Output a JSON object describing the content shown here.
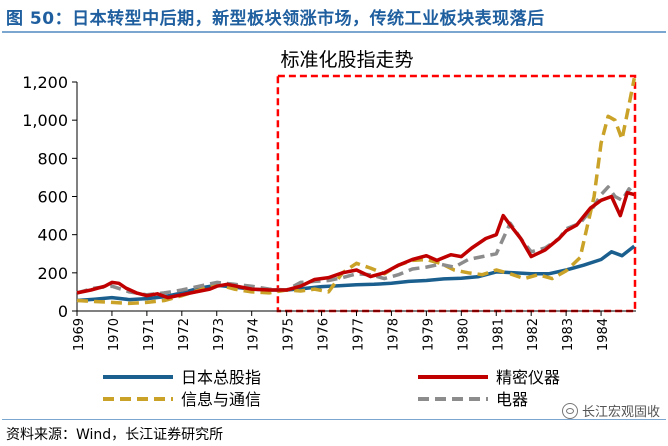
{
  "figure": {
    "title": "图 50：日本转型中后期，新型板块领涨市场，传统工业板块表现落后",
    "source": "资料来源：Wind，长江证券研究所",
    "watermark": "长江宏观固收"
  },
  "chart_data": {
    "type": "line",
    "title": "标准化股指走势",
    "xlabel": "",
    "ylabel": "",
    "ylim": [
      0,
      1200
    ],
    "yticks": [
      "0",
      "200",
      "400",
      "600",
      "800",
      "1,000",
      "1,200"
    ],
    "ytick_values": [
      0,
      200,
      400,
      600,
      800,
      1000,
      1200
    ],
    "xlim": [
      1969,
      1985
    ],
    "xticks": [
      "1969",
      "1970",
      "1971",
      "1972",
      "1973",
      "1974",
      "1975",
      "1976",
      "1977",
      "1978",
      "1979",
      "1980",
      "1981",
      "1982",
      "1983",
      "1984"
    ],
    "xtick_values": [
      1969,
      1970,
      1971,
      1972,
      1973,
      1974,
      1975,
      1976,
      1977,
      1978,
      1979,
      1980,
      1981,
      1982,
      1983,
      1984
    ],
    "highlight_range": [
      1974.75,
      1985
    ],
    "colors": {
      "nikkei": "#1b5f8f",
      "precision": "#c00000",
      "telecom": "#c9a227",
      "electric": "#8c8c8c",
      "highlight": "#ff0000"
    },
    "legend": [
      "日本总股指",
      "精密仪器",
      "信息与通信",
      "电器"
    ],
    "series": [
      {
        "name": "日本总股指",
        "key": "nikkei",
        "style": "solid",
        "x": [
          1969,
          1969.5,
          1970,
          1970.5,
          1971,
          1971.5,
          1972,
          1972.5,
          1973,
          1973.5,
          1974,
          1974.5,
          1975,
          1975.5,
          1976,
          1976.5,
          1977,
          1977.5,
          1978,
          1978.5,
          1979,
          1979.5,
          1980,
          1980.5,
          1981,
          1981.5,
          1982,
          1982.5,
          1983,
          1983.5,
          1984,
          1984.3,
          1984.6,
          1984.95
        ],
        "values": [
          55,
          62,
          70,
          60,
          65,
          75,
          95,
          120,
          135,
          125,
          115,
          110,
          110,
          118,
          128,
          132,
          138,
          140,
          145,
          155,
          160,
          168,
          172,
          180,
          205,
          200,
          195,
          195,
          215,
          240,
          270,
          310,
          290,
          340
        ]
      },
      {
        "name": "精密仪器",
        "key": "precision",
        "style": "solid",
        "x": [
          1969,
          1969.4,
          1969.8,
          1970,
          1970.2,
          1970.4,
          1970.7,
          1971,
          1971.3,
          1971.6,
          1972,
          1972.4,
          1972.8,
          1973,
          1973.3,
          1973.7,
          1974,
          1974.5,
          1975,
          1975.4,
          1975.8,
          1976.2,
          1976.6,
          1977,
          1977.4,
          1977.8,
          1978.2,
          1978.6,
          1979,
          1979.3,
          1979.7,
          1980,
          1980.3,
          1980.7,
          1981,
          1981.2,
          1981.4,
          1981.7,
          1982,
          1982.4,
          1982.8,
          1983,
          1983.3,
          1983.7,
          1984,
          1984.3,
          1984.55,
          1984.75,
          1984.95
        ],
        "values": [
          95,
          110,
          130,
          150,
          145,
          120,
          95,
          80,
          90,
          70,
          85,
          100,
          115,
          130,
          140,
          125,
          115,
          110,
          110,
          130,
          165,
          175,
          200,
          215,
          180,
          200,
          240,
          270,
          290,
          265,
          295,
          285,
          330,
          380,
          400,
          500,
          450,
          380,
          285,
          320,
          380,
          420,
          450,
          540,
          580,
          600,
          500,
          620,
          610
        ]
      },
      {
        "name": "信息与通信",
        "key": "telecom",
        "style": "dashed",
        "x": [
          1969,
          1969.5,
          1970,
          1970.5,
          1971,
          1971.5,
          1972,
          1972.5,
          1973,
          1973.5,
          1974,
          1974.5,
          1975,
          1975.4,
          1975.8,
          1976.2,
          1976.6,
          1977,
          1977.4,
          1977.8,
          1978.2,
          1978.6,
          1979,
          1979.4,
          1979.8,
          1980.2,
          1980.6,
          1981,
          1981.4,
          1981.8,
          1982.2,
          1982.6,
          1983,
          1983.4,
          1983.8,
          1984,
          1984.2,
          1984.4,
          1984.6,
          1984.8,
          1984.95
        ],
        "values": [
          55,
          50,
          45,
          40,
          45,
          55,
          80,
          110,
          140,
          115,
          100,
          95,
          110,
          105,
          115,
          100,
          200,
          250,
          225,
          195,
          240,
          265,
          270,
          250,
          215,
          200,
          190,
          215,
          195,
          170,
          190,
          170,
          210,
          280,
          600,
          880,
          1020,
          1000,
          900,
          1080,
          1220
        ]
      },
      {
        "name": "电器",
        "key": "electric",
        "style": "dashed",
        "x": [
          1969,
          1969.5,
          1970,
          1970.5,
          1971,
          1971.5,
          1972,
          1972.5,
          1973,
          1973.5,
          1974,
          1974.5,
          1975,
          1975.4,
          1975.8,
          1976.2,
          1976.6,
          1977,
          1977.4,
          1977.8,
          1978.2,
          1978.6,
          1979,
          1979.4,
          1979.8,
          1980.2,
          1980.6,
          1981,
          1981.2,
          1981.4,
          1981.7,
          1982,
          1982.4,
          1982.8,
          1983,
          1983.4,
          1983.8,
          1984,
          1984.2,
          1984.4,
          1984.6,
          1984.8,
          1984.95
        ],
        "values": [
          95,
          120,
          130,
          100,
          85,
          95,
          110,
          130,
          150,
          140,
          130,
          115,
          110,
          150,
          155,
          160,
          175,
          195,
          190,
          170,
          190,
          220,
          230,
          245,
          230,
          270,
          285,
          300,
          380,
          460,
          380,
          310,
          330,
          380,
          430,
          460,
          550,
          610,
          650,
          600,
          580,
          640,
          610
        ]
      }
    ]
  }
}
